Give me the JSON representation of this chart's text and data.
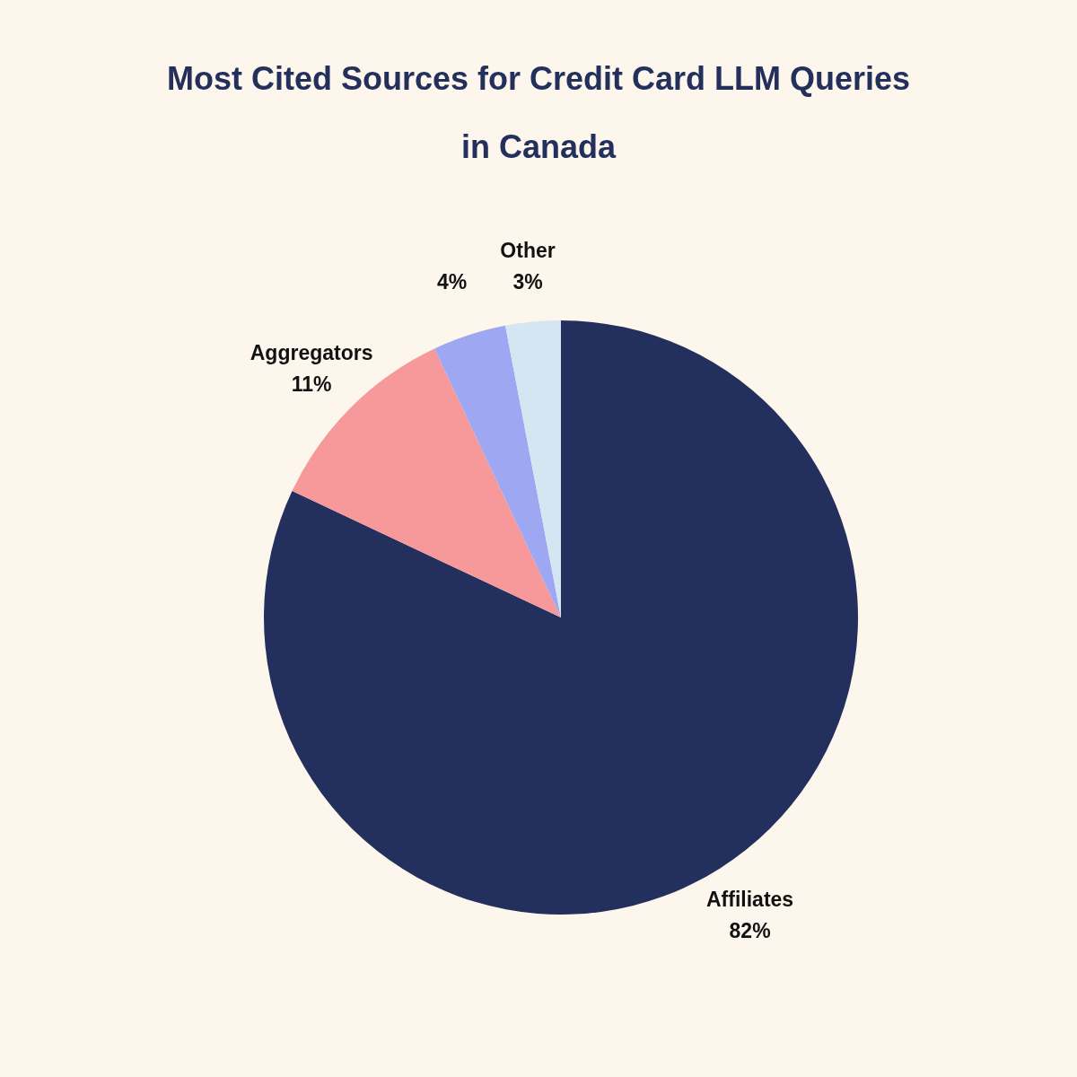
{
  "chart_data": {
    "type": "pie",
    "title": "Most Cited Sources for Credit Card LLM Queries in Canada",
    "categories": [
      "Affiliates",
      "Aggregators",
      null,
      "Other"
    ],
    "values": [
      82,
      11,
      4,
      3
    ],
    "colors": [
      "#232f5c",
      "#f7999a",
      "#9ea8f2",
      "#d3e6f2"
    ],
    "value_labels": [
      "82%",
      "11%",
      "4%",
      "3%"
    ]
  }
}
